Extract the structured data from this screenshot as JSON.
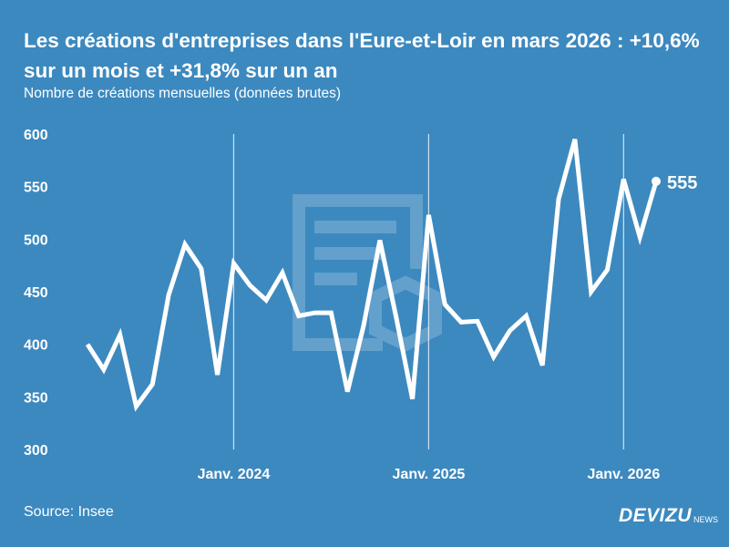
{
  "title": "Les créations d'entreprises dans l'Eure-et-Loir en mars 2026 : +10,6% sur un mois et +31,8% sur un an",
  "subtitle": "Nombre de créations mensuelles (données brutes)",
  "source": "Source: Insee",
  "logo": {
    "main": "DEVIZU",
    "sub": "NEWS"
  },
  "colors": {
    "background": "#3c89bf",
    "line": "#ffffff"
  },
  "chart_data": {
    "type": "line",
    "title": "Les créations d'entreprises dans l'Eure-et-Loir en mars 2026 : +10,6% sur un mois et +31,8% sur un an",
    "ylabel": "Nombre de créations mensuelles (données brutes)",
    "ylim": [
      300,
      600
    ],
    "yticks": [
      300,
      350,
      400,
      450,
      500,
      550,
      600
    ],
    "xticks": [
      {
        "label": "Janv. 2024",
        "index": 9
      },
      {
        "label": "Janv. 2025",
        "index": 21
      },
      {
        "label": "Janv. 2026",
        "index": 33
      }
    ],
    "x": [
      "2023-04",
      "2023-05",
      "2023-06",
      "2023-07",
      "2023-08",
      "2023-09",
      "2023-10",
      "2023-11",
      "2023-12",
      "2024-01",
      "2024-02",
      "2024-03",
      "2024-04",
      "2024-05",
      "2024-06",
      "2024-07",
      "2024-08",
      "2024-09",
      "2024-10",
      "2024-11",
      "2024-12",
      "2025-01",
      "2025-02",
      "2025-03",
      "2025-04",
      "2025-05",
      "2025-06",
      "2025-07",
      "2025-08",
      "2025-09",
      "2025-10",
      "2025-11",
      "2025-12",
      "2026-01",
      "2026-02",
      "2026-03"
    ],
    "values": [
      400,
      376,
      409,
      341,
      362,
      447,
      495,
      472,
      371,
      477,
      456,
      442,
      468,
      427,
      430,
      430,
      355,
      418,
      499,
      426,
      348,
      523,
      438,
      421,
      422,
      388,
      413,
      427,
      380,
      538,
      595,
      450,
      471,
      557,
      502,
      555
    ],
    "last_label": "555",
    "grid": "vertical lines at January"
  }
}
